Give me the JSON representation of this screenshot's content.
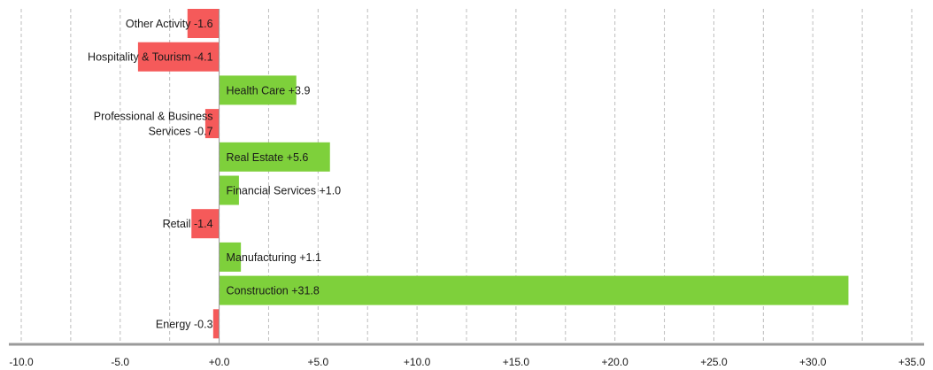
{
  "chart_data": {
    "type": "bar",
    "orientation": "horizontal",
    "title": "",
    "xlabel": "",
    "ylabel": "",
    "xlim": [
      -10,
      35
    ],
    "x_ticks": [
      -10,
      -5,
      0,
      5,
      10,
      15,
      20,
      25,
      30,
      35
    ],
    "x_tick_labels": [
      "-10.0",
      "-5.0",
      "+0.0",
      "+5.0",
      "+10.0",
      "+15.0",
      "+20.0",
      "+25.0",
      "+30.0",
      "+35.0"
    ],
    "grid": "vertical dashed",
    "legend": "none",
    "colors": {
      "positive": "#7ed03b",
      "negative": "#f55a5a",
      "axis": "#9a9a9a",
      "grid": "#bdbdbd"
    },
    "bars": [
      {
        "category": "Other Activity",
        "value": -1.6,
        "label": [
          "Other Activity -1.6"
        ]
      },
      {
        "category": "Hospitality & Tourism",
        "value": -4.1,
        "label": [
          "Hospitality & Tourism -4.1"
        ]
      },
      {
        "category": "Health Care",
        "value": 3.9,
        "label": [
          "Health Care +3.9"
        ]
      },
      {
        "category": "Professional & Business Services",
        "value": -0.7,
        "label": [
          "Professional & Business",
          "Services -0.7"
        ]
      },
      {
        "category": "Real Estate",
        "value": 5.6,
        "label": [
          "Real Estate +5.6"
        ]
      },
      {
        "category": "Financial Services",
        "value": 1.0,
        "label": [
          "Financial Services +1.0"
        ]
      },
      {
        "category": "Retail",
        "value": -1.4,
        "label": [
          "Retail -1.4"
        ]
      },
      {
        "category": "Manufacturing",
        "value": 1.1,
        "label": [
          "Manufacturing +1.1"
        ]
      },
      {
        "category": "Construction",
        "value": 31.8,
        "label": [
          "Construction +31.8"
        ]
      },
      {
        "category": "Energy",
        "value": -0.3,
        "label": [
          "Energy -0.3"
        ]
      }
    ]
  }
}
